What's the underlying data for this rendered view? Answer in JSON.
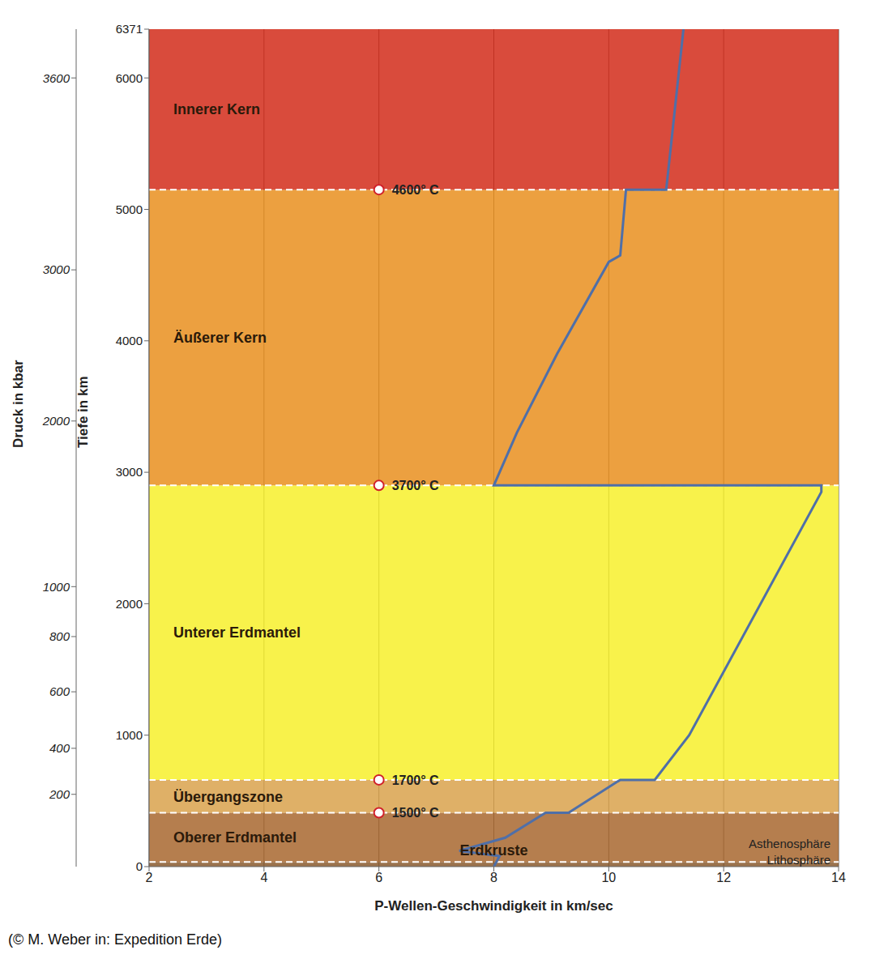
{
  "chart_data": {
    "type": "line",
    "x_label": "P-Wellen-Geschwindigkeit in km/sec",
    "y_label": "Tiefe in km",
    "y2_label": "Druck in kbar",
    "x": [
      8.0,
      8.1,
      7.4,
      8.2,
      8.9,
      9.3,
      10.2,
      10.8,
      11.4,
      13.7,
      13.7,
      8.0,
      8.4,
      9.1,
      10.0,
      10.2,
      10.3,
      11.0,
      11.3
    ],
    "y": [
      0,
      80,
      120,
      220,
      410,
      410,
      660,
      660,
      1000,
      2850,
      2900,
      2900,
      3300,
      3900,
      4600,
      4650,
      5150,
      5150,
      6371
    ],
    "color": "#4f6fa8",
    "xlim": [
      2,
      14
    ],
    "xticks": [
      2,
      4,
      6,
      8,
      10,
      12,
      14
    ],
    "ylim": [
      0,
      6371
    ],
    "yticks": [
      0,
      1000,
      2000,
      3000,
      4000,
      5000,
      6000,
      6371
    ],
    "grid": true,
    "pressure_ticks": [
      {
        "depth": 550,
        "kbar": 200
      },
      {
        "depth": 900,
        "kbar": 400
      },
      {
        "depth": 1330,
        "kbar": 600
      },
      {
        "depth": 1750,
        "kbar": 800
      },
      {
        "depth": 2130,
        "kbar": 1000
      },
      {
        "depth": 3390,
        "kbar": 2000
      },
      {
        "depth": 4540,
        "kbar": 3000
      },
      {
        "depth": 6000,
        "kbar": 3600
      }
    ],
    "layers": [
      {
        "name": "Erdkruste",
        "top": 0,
        "bottom": 35,
        "color": "#8a5a2e"
      },
      {
        "name": "Oberer Erdmantel",
        "top": 35,
        "bottom": 410,
        "color": "#a8672f"
      },
      {
        "name": "Übergangszone",
        "top": 410,
        "bottom": 660,
        "color": "#d9a24c"
      },
      {
        "name": "Unterer Erdmantel",
        "top": 660,
        "bottom": 2900,
        "color": "#f7f02c"
      },
      {
        "name": "Äußerer Kern",
        "top": 2900,
        "bottom": 5150,
        "color": "#e98f1f"
      },
      {
        "name": "Innerer Kern",
        "top": 5150,
        "bottom": 6371,
        "color": "#d22b1a"
      }
    ],
    "sublayers": [
      {
        "name": "Lithosphäre",
        "top": 0,
        "bottom": 100
      },
      {
        "name": "Asthenosphäre",
        "top": 100,
        "bottom": 250
      }
    ],
    "temperatures": [
      {
        "depth": 410,
        "label": "1500° C"
      },
      {
        "depth": 660,
        "label": "1700° C"
      },
      {
        "depth": 2900,
        "label": "3700° C"
      },
      {
        "depth": 5150,
        "label": "4600° C"
      }
    ],
    "credit": "(© M. Weber in: Expedition Erde)"
  }
}
